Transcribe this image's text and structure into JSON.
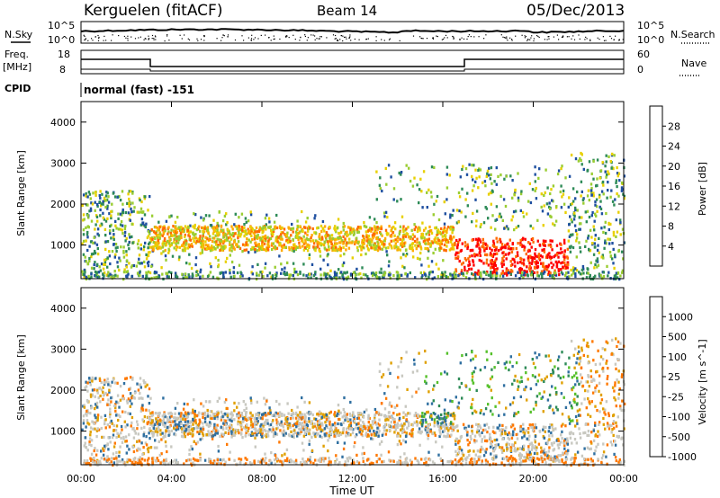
{
  "header": {
    "station": "Kerguelen (fitACF)",
    "beam": "Beam 14",
    "date": "05/Dec/2013"
  },
  "top_panels": {
    "nsky_label": "N.Sky",
    "nsearch_label": "N.Search",
    "power_ticks_left": [
      "10^5",
      "10^0"
    ],
    "power_ticks_right": [
      "10^5",
      "10^0"
    ],
    "freq_label_line1": "Freq.",
    "freq_label_line2": "[MHz]",
    "freq_ticks": [
      "18",
      "8"
    ],
    "nave_label": "Nave",
    "nave_ticks": [
      "60",
      "0"
    ],
    "cpid_label": "CPID",
    "cpid_text": "normal (fast) -151"
  },
  "chart_data": [
    {
      "type": "heatmap",
      "name": "power",
      "ylabel": "Slant Range [km]",
      "xlabel": "",
      "ylim": [
        180,
        4500
      ],
      "xlim_hours": [
        0,
        24
      ],
      "yticks": [
        "4000",
        "3000",
        "2000",
        "1000"
      ],
      "colorbar": {
        "label": "Power [dB]",
        "ticks": [
          "28",
          "24",
          "20",
          "16",
          "12",
          "8",
          "4"
        ],
        "colors": [
          "#ff0000",
          "#ff6a00",
          "#ffaa00",
          "#e8d000",
          "#9acd32",
          "#2e8b57",
          "#1e4fa0",
          "#0000ff"
        ]
      },
      "bands": [
        {
          "t0": 0.0,
          "t1": 3.0,
          "r0": 250,
          "r1": 2300,
          "level": "mixed"
        },
        {
          "t0": 3.0,
          "t1": 16.5,
          "r0": 900,
          "r1": 1500,
          "level": 20
        },
        {
          "t0": 16.5,
          "t1": 21.5,
          "r0": 300,
          "r1": 1200,
          "level": 28
        },
        {
          "t0": 13.0,
          "t1": 17.0,
          "r0": 1800,
          "r1": 3200,
          "level": 10
        },
        {
          "t0": 21.0,
          "t1": 24.0,
          "r0": 500,
          "r1": 3200,
          "level": 12
        }
      ]
    },
    {
      "type": "heatmap",
      "name": "velocity",
      "ylabel": "Slant Range [km]",
      "xlabel": "Time UT",
      "ylim": [
        180,
        4500
      ],
      "xlim_hours": [
        0,
        24
      ],
      "yticks": [
        "4000",
        "3000",
        "2000",
        "1000"
      ],
      "xticks": [
        "00:00",
        "04:00",
        "08:00",
        "12:00",
        "16:00",
        "20:00",
        "00:00"
      ],
      "colorbar": {
        "label": "Velocity [m s^-1]",
        "ticks": [
          "1000",
          "500",
          "100",
          "25",
          "-25",
          "-100",
          "-500",
          "-1000"
        ],
        "colors": [
          "#1c3fb0",
          "#2f6fa0",
          "#2e8b57",
          "#55c02a",
          "#c8c8c0",
          "#e0a000",
          "#ff7800",
          "#ff0000"
        ]
      }
    }
  ]
}
